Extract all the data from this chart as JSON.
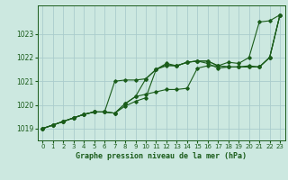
{
  "background_color": "#cce8e0",
  "grid_color": "#aacccc",
  "line_color": "#1a5c1a",
  "title": "Graphe pression niveau de la mer (hPa)",
  "xlim": [
    -0.5,
    23.5
  ],
  "ylim": [
    1018.5,
    1024.2
  ],
  "yticks": [
    1019,
    1020,
    1021,
    1022,
    1023
  ],
  "xticks": [
    0,
    1,
    2,
    3,
    4,
    5,
    6,
    7,
    8,
    9,
    10,
    11,
    12,
    13,
    14,
    15,
    16,
    17,
    18,
    19,
    20,
    21,
    22,
    23
  ],
  "series": [
    {
      "x": [
        0,
        1,
        2,
        3,
        4,
        5,
        6,
        7,
        8,
        9,
        10,
        11,
        12,
        13,
        14,
        15,
        16,
        17,
        18,
        19,
        20,
        21,
        22,
        23
      ],
      "y": [
        1019.0,
        1019.15,
        1019.3,
        1019.45,
        1019.6,
        1019.7,
        1019.7,
        1019.65,
        1019.95,
        1020.15,
        1020.3,
        1021.5,
        1021.75,
        1021.65,
        1021.8,
        1021.85,
        1021.85,
        1021.65,
        1021.8,
        1021.75,
        1022.0,
        1023.5,
        1023.55,
        1023.8
      ]
    },
    {
      "x": [
        0,
        1,
        2,
        3,
        4,
        5,
        6,
        7,
        8,
        9,
        10,
        11,
        12,
        13,
        14,
        15,
        16,
        17,
        18,
        19,
        20,
        21,
        22,
        23
      ],
      "y": [
        1019.0,
        1019.15,
        1019.3,
        1019.45,
        1019.6,
        1019.7,
        1019.7,
        1021.0,
        1021.05,
        1021.05,
        1021.1,
        1021.5,
        1021.7,
        1021.65,
        1021.8,
        1021.85,
        1021.75,
        1021.55,
        1021.6,
        1021.6,
        1021.65,
        1021.6,
        1022.0,
        1023.8
      ]
    },
    {
      "x": [
        0,
        1,
        2,
        3,
        4,
        5,
        6,
        7,
        8,
        9,
        10,
        11,
        12,
        13,
        14,
        15,
        16,
        17,
        18,
        19,
        20,
        21,
        22,
        23
      ],
      "y": [
        1019.0,
        1019.15,
        1019.3,
        1019.45,
        1019.6,
        1019.7,
        1019.7,
        1019.65,
        1020.05,
        1020.35,
        1021.1,
        1021.5,
        1021.65,
        1021.65,
        1021.8,
        1021.85,
        1021.85,
        1021.65,
        1021.6,
        1021.6,
        1021.6,
        1021.6,
        1022.0,
        1023.8
      ]
    },
    {
      "x": [
        0,
        1,
        2,
        3,
        4,
        5,
        6,
        7,
        8,
        9,
        10,
        11,
        12,
        13,
        14,
        15,
        16,
        17,
        18,
        19,
        20,
        21,
        22,
        23
      ],
      "y": [
        1019.0,
        1019.15,
        1019.3,
        1019.45,
        1019.6,
        1019.7,
        1019.7,
        1019.65,
        1020.05,
        1020.35,
        1020.45,
        1020.55,
        1020.65,
        1020.65,
        1020.7,
        1021.55,
        1021.65,
        1021.65,
        1021.6,
        1021.6,
        1021.6,
        1021.6,
        1022.0,
        1023.8
      ]
    }
  ]
}
